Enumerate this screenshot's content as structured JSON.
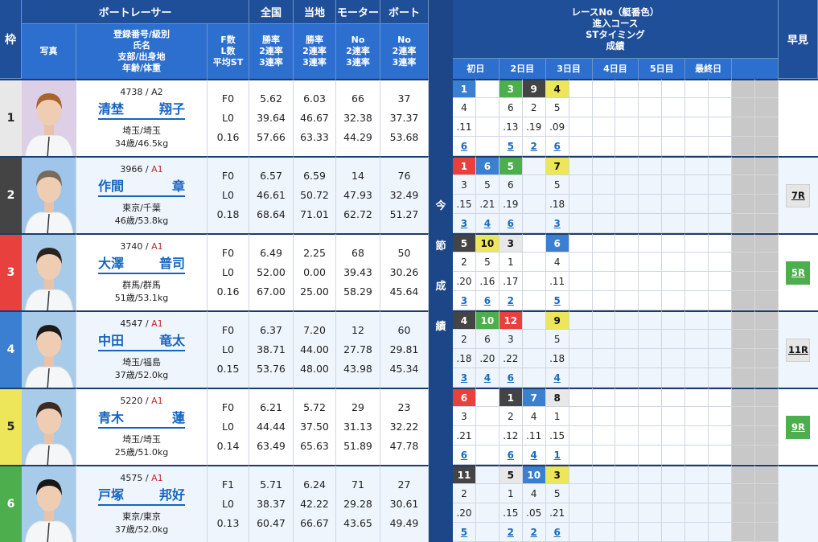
{
  "header": {
    "waku": "枠",
    "racer": "ボートレーサー",
    "national": "全国",
    "local": "当地",
    "motor": "モーター",
    "boat": "ボート",
    "photo": "写真",
    "info_lines": [
      "登録番号/級別",
      "氏名",
      "支部/出身地",
      "年齢/体重"
    ],
    "fl_lines": [
      "F数",
      "L数",
      "平均ST"
    ],
    "national_lines": [
      "勝率",
      "2連率",
      "3連率"
    ],
    "local_lines": [
      "勝率",
      "2連率",
      "3連率"
    ],
    "motor_lines": [
      "No",
      "2連率",
      "3連率"
    ],
    "boat_lines": [
      "No",
      "2連率",
      "3連率"
    ],
    "race_lines": [
      "レースNo（艇番色）",
      "進入コース",
      "STタイミング",
      "成績"
    ],
    "days": [
      "初日",
      "2日目",
      "3日目",
      "4日目",
      "5日目",
      "最終日",
      ""
    ],
    "hayami": "早見",
    "current_series": [
      "今",
      "節",
      "成",
      "績"
    ]
  },
  "boat_colors": {
    "1": "#e8e8e8",
    "2": "#444444",
    "3": "#e8403d",
    "4": "#3a7fd0",
    "5": "#ede65a",
    "6": "#4cae4c"
  },
  "racers": [
    {
      "waku": "1",
      "reg_no": "4738",
      "cls": "A2",
      "family": "清埜",
      "given": "翔子",
      "branch": "埼玉/埼玉",
      "age_weight": "34歳/46.5kg",
      "f": "F0",
      "l": "L0",
      "st": "0.16",
      "national": [
        "5.62",
        "39.64",
        "57.66"
      ],
      "local": [
        "6.03",
        "46.67",
        "63.33"
      ],
      "motor": [
        "66",
        "32.38",
        "44.29"
      ],
      "boat": [
        "37",
        "37.37",
        "53.68"
      ],
      "races": [
        {
          "race": "1",
          "color": "4",
          "course": "4",
          "st": ".11",
          "result": "6"
        },
        null,
        {
          "race": "3",
          "color": "6",
          "course": "6",
          "st": ".13",
          "result": "5"
        },
        {
          "race": "9",
          "color": "2",
          "course": "2",
          "st": ".19",
          "result": "2"
        },
        {
          "race": "4",
          "color": "5",
          "course": "5",
          "st": ".09",
          "result": "6"
        },
        null,
        null,
        null,
        null,
        null,
        null,
        null
      ],
      "hayami": null
    },
    {
      "waku": "2",
      "reg_no": "3966",
      "cls": "A1",
      "family": "作間",
      "given": "章",
      "branch": "東京/千葉",
      "age_weight": "46歳/53.8kg",
      "f": "F0",
      "l": "L0",
      "st": "0.18",
      "national": [
        "6.57",
        "46.61",
        "68.64"
      ],
      "local": [
        "6.59",
        "50.72",
        "71.01"
      ],
      "motor": [
        "14",
        "47.93",
        "62.72"
      ],
      "boat": [
        "76",
        "32.49",
        "51.27"
      ],
      "races": [
        {
          "race": "1",
          "color": "3",
          "course": "3",
          "st": ".15",
          "result": "3"
        },
        {
          "race": "6",
          "color": "4",
          "course": "5",
          "st": ".21",
          "result": "4"
        },
        {
          "race": "5",
          "color": "6",
          "course": "6",
          "st": ".19",
          "result": "6"
        },
        null,
        {
          "race": "7",
          "color": "5",
          "course": "5",
          "st": ".18",
          "result": "3"
        },
        null,
        null,
        null,
        null,
        null,
        null,
        null
      ],
      "hayami": {
        "label": "7R",
        "color": "#e6e6e6"
      }
    },
    {
      "waku": "3",
      "reg_no": "3740",
      "cls": "A1",
      "family": "大澤",
      "given": "普司",
      "branch": "群馬/群馬",
      "age_weight": "51歳/53.1kg",
      "f": "F0",
      "l": "L0",
      "st": "0.16",
      "national": [
        "6.49",
        "52.00",
        "67.00"
      ],
      "local": [
        "2.25",
        "0.00",
        "25.00"
      ],
      "motor": [
        "68",
        "39.43",
        "58.29"
      ],
      "boat": [
        "50",
        "30.26",
        "45.64"
      ],
      "races": [
        {
          "race": "5",
          "color": "2",
          "course": "2",
          "st": ".20",
          "result": "3"
        },
        {
          "race": "10",
          "color": "5",
          "course": "5",
          "st": ".16",
          "result": "6"
        },
        {
          "race": "3",
          "color": "1",
          "course": "1",
          "st": ".17",
          "result": "2"
        },
        null,
        {
          "race": "6",
          "color": "4",
          "course": "4",
          "st": ".11",
          "result": "5"
        },
        null,
        null,
        null,
        null,
        null,
        null,
        null
      ],
      "hayami": {
        "label": "5R",
        "color": "#4cae4c"
      }
    },
    {
      "waku": "4",
      "reg_no": "4547",
      "cls": "A1",
      "family": "中田",
      "given": "竜太",
      "branch": "埼玉/福島",
      "age_weight": "37歳/52.0kg",
      "f": "F0",
      "l": "L0",
      "st": "0.15",
      "national": [
        "6.37",
        "38.71",
        "53.76"
      ],
      "local": [
        "7.20",
        "44.00",
        "48.00"
      ],
      "motor": [
        "12",
        "27.78",
        "43.98"
      ],
      "boat": [
        "60",
        "29.81",
        "45.34"
      ],
      "races": [
        {
          "race": "4",
          "color": "2",
          "course": "2",
          "st": ".18",
          "result": "3"
        },
        {
          "race": "10",
          "color": "6",
          "course": "6",
          "st": ".20",
          "result": "4"
        },
        {
          "race": "12",
          "color": "3",
          "course": "3",
          "st": ".22",
          "result": "6"
        },
        null,
        {
          "race": "9",
          "color": "5",
          "course": "5",
          "st": ".18",
          "result": "4"
        },
        null,
        null,
        null,
        null,
        null,
        null,
        null
      ],
      "hayami": {
        "label": "11R",
        "color": "#e6e6e6"
      }
    },
    {
      "waku": "5",
      "reg_no": "5220",
      "cls": "A1",
      "family": "青木",
      "given": "蓮",
      "branch": "埼玉/埼玉",
      "age_weight": "25歳/51.0kg",
      "f": "F0",
      "l": "L0",
      "st": "0.14",
      "national": [
        "6.21",
        "44.44",
        "63.49"
      ],
      "local": [
        "5.72",
        "37.50",
        "65.63"
      ],
      "motor": [
        "29",
        "31.13",
        "51.89"
      ],
      "boat": [
        "23",
        "32.22",
        "47.78"
      ],
      "races": [
        {
          "race": "6",
          "color": "3",
          "course": "3",
          "st": ".21",
          "result": "6"
        },
        null,
        {
          "race": "1",
          "color": "2",
          "course": "2",
          "st": ".12",
          "result": "6"
        },
        {
          "race": "7",
          "color": "4",
          "course": "4",
          "st": ".11",
          "result": "4"
        },
        {
          "race": "8",
          "color": "1",
          "course": "1",
          "st": ".15",
          "result": "1"
        },
        null,
        null,
        null,
        null,
        null,
        null,
        null
      ],
      "hayami": {
        "label": "9R",
        "color": "#4cae4c"
      }
    },
    {
      "waku": "6",
      "reg_no": "4575",
      "cls": "A1",
      "family": "戸塚",
      "given": "邦好",
      "branch": "東京/東京",
      "age_weight": "37歳/52.0kg",
      "f": "F1",
      "l": "L0",
      "st": "0.13",
      "national": [
        "5.71",
        "38.37",
        "60.47"
      ],
      "local": [
        "6.24",
        "42.22",
        "66.67"
      ],
      "motor": [
        "71",
        "29.28",
        "43.65"
      ],
      "boat": [
        "27",
        "30.61",
        "49.49"
      ],
      "races": [
        {
          "race": "11",
          "color": "2",
          "course": "2",
          "st": ".20",
          "result": "5"
        },
        null,
        {
          "race": "5",
          "color": "1",
          "course": "1",
          "st": ".15",
          "result": "2"
        },
        {
          "race": "10",
          "color": "4",
          "course": "4",
          "st": ".05",
          "result": "2"
        },
        {
          "race": "3",
          "color": "5",
          "course": "5",
          "st": ".21",
          "result": "6"
        },
        null,
        null,
        null,
        null,
        null,
        null,
        null
      ],
      "hayami": null
    }
  ]
}
